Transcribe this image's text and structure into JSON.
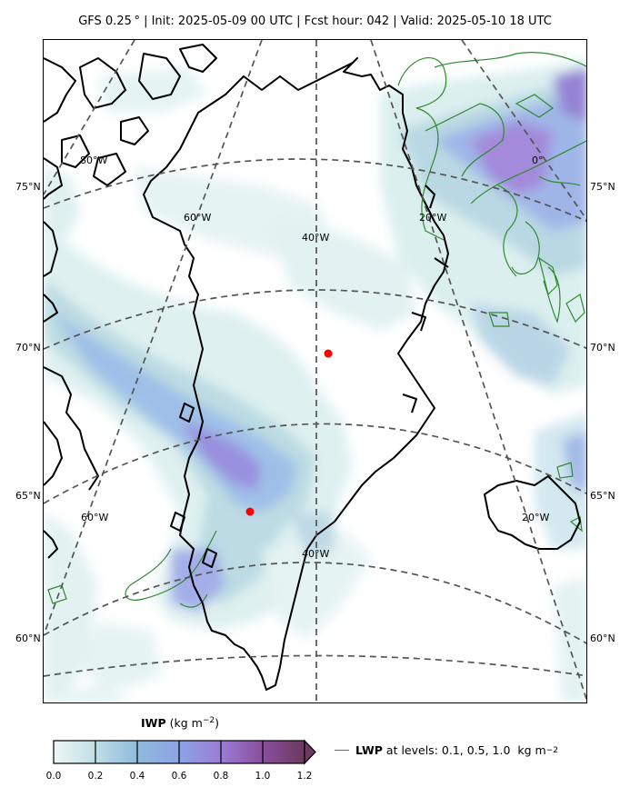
{
  "header": {
    "title": "GFS 0.25$^\\circ$  |  Init: 2025-05-09 00 UTC  |  Fcst hour: 042  |  Valid: 2025-05-10 18 UTC",
    "title_display": "GFS 0.25 °  |  Init: 2025-05-09 00 UTC  |  Fcst hour: 042  |  Valid: 2025-05-10 18 UTC"
  },
  "map": {
    "lat_labels": [
      "75°N",
      "70°N",
      "65°N",
      "60°N"
    ],
    "lon_labels": {
      "top_80w": "80°W",
      "top_60w": "60°W",
      "top_40w": "40°W",
      "top_20w": "20°W",
      "top_0": "0°",
      "bottom_60w": "60°W",
      "bottom_40w": "40°W",
      "bottom_20w": "20°W"
    },
    "markers": [
      {
        "name": "red-dot-north",
        "color": "#ff0000"
      },
      {
        "name": "red-dot-south",
        "color": "#ff0000"
      }
    ],
    "colors": {
      "coast": "#000000",
      "graticule": "#555555",
      "lwp_contour": "#2e8b2e",
      "marker": "#ff0000"
    }
  },
  "colorbar": {
    "title_bold": "IWP",
    "title_rest": " (kg m",
    "title_sup": "−2",
    "title_end": ")",
    "ticks": [
      "0.0",
      "0.2",
      "0.4",
      "0.6",
      "0.8",
      "1.0",
      "1.2"
    ],
    "colors": [
      "#e2f1f1",
      "#a8d0dc",
      "#8fb1e6",
      "#9a7ed8",
      "#8a4f9e",
      "#6b3a5e"
    ]
  },
  "legend": {
    "bold": "LWP",
    "text": " at levels: 0.1, 0.5, 1.0  kg m",
    "sup": "−2"
  }
}
